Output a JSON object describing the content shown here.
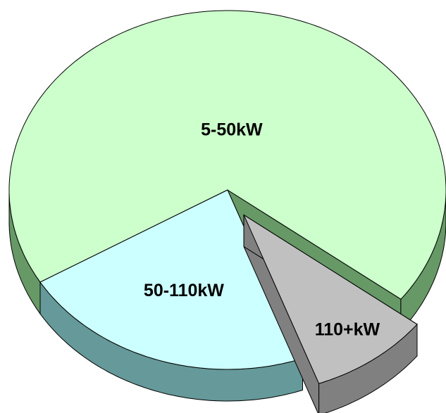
{
  "chart_data": {
    "type": "pie3d",
    "categories": [
      "5-50kW",
      "50-110kW",
      "110+kW"
    ],
    "values": [
      69,
      22,
      9
    ],
    "colors": [
      "#ccffcc",
      "#ccffff",
      "#c0c0c0"
    ],
    "side_colors": [
      "#669966",
      "#669999",
      "#808080"
    ],
    "exploded": [
      false,
      false,
      true
    ]
  }
}
